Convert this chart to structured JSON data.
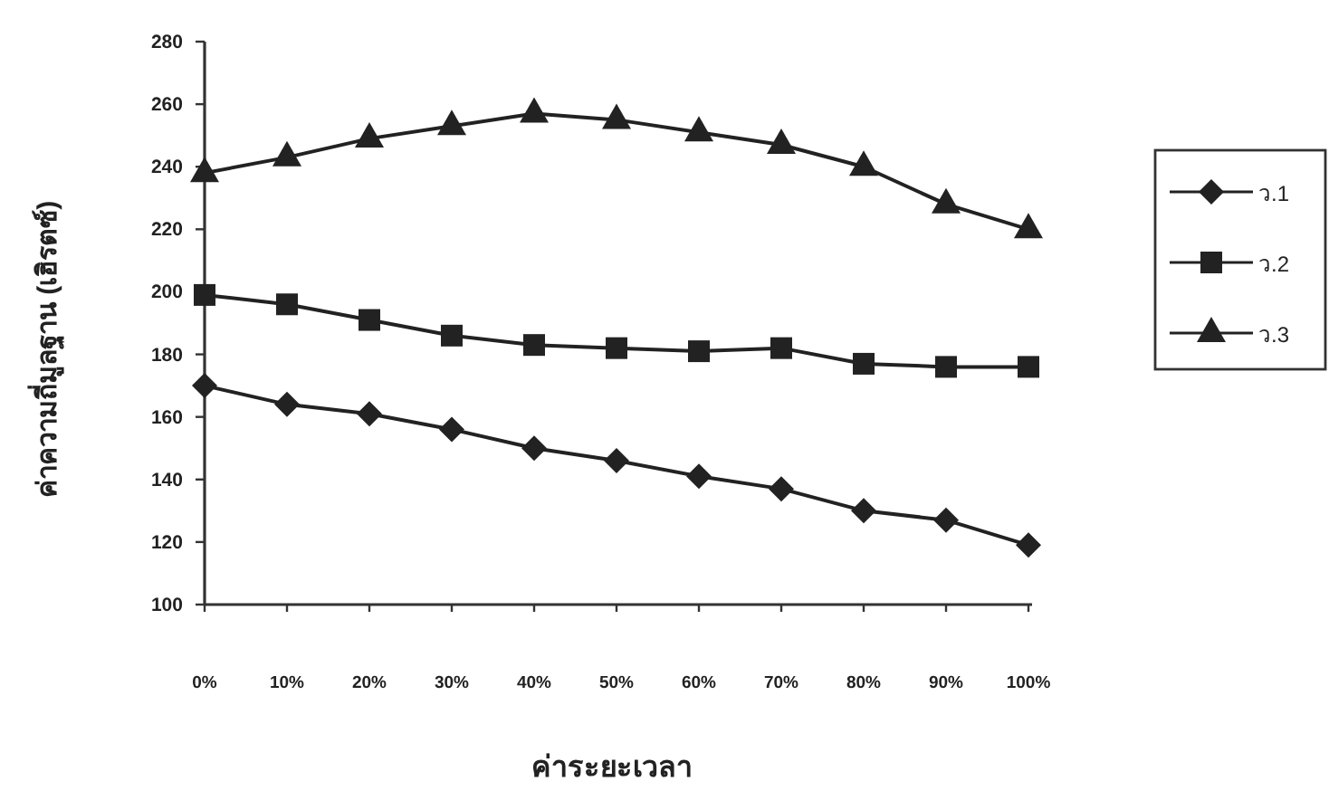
{
  "chart_data": {
    "type": "line",
    "xlabel": "ค่าระยะเวลา",
    "ylabel": "ค่าความถี่มูลฐาน (เฮิรตซ์)",
    "categories": [
      "0%",
      "10%",
      "20%",
      "30%",
      "40%",
      "50%",
      "60%",
      "70%",
      "80%",
      "90%",
      "100%"
    ],
    "series": [
      {
        "name": "ว.1",
        "color": "#222222",
        "marker": "diamond",
        "values": [
          170,
          164,
          161,
          156,
          150,
          146,
          141,
          137,
          130,
          127,
          119
        ]
      },
      {
        "name": "ว.2",
        "color": "#222222",
        "marker": "square",
        "values": [
          199,
          196,
          191,
          186,
          183,
          182,
          181,
          182,
          177,
          176,
          176
        ]
      },
      {
        "name": "ว.3",
        "color": "#222222",
        "marker": "triangle",
        "values": [
          238,
          243,
          249,
          253,
          257,
          255,
          251,
          247,
          240,
          228,
          220
        ]
      }
    ],
    "ylim": [
      100,
      280
    ],
    "yticks": [
      100,
      120,
      140,
      160,
      180,
      200,
      220,
      240,
      260,
      280
    ],
    "legend": "right",
    "line_style": "solid"
  }
}
